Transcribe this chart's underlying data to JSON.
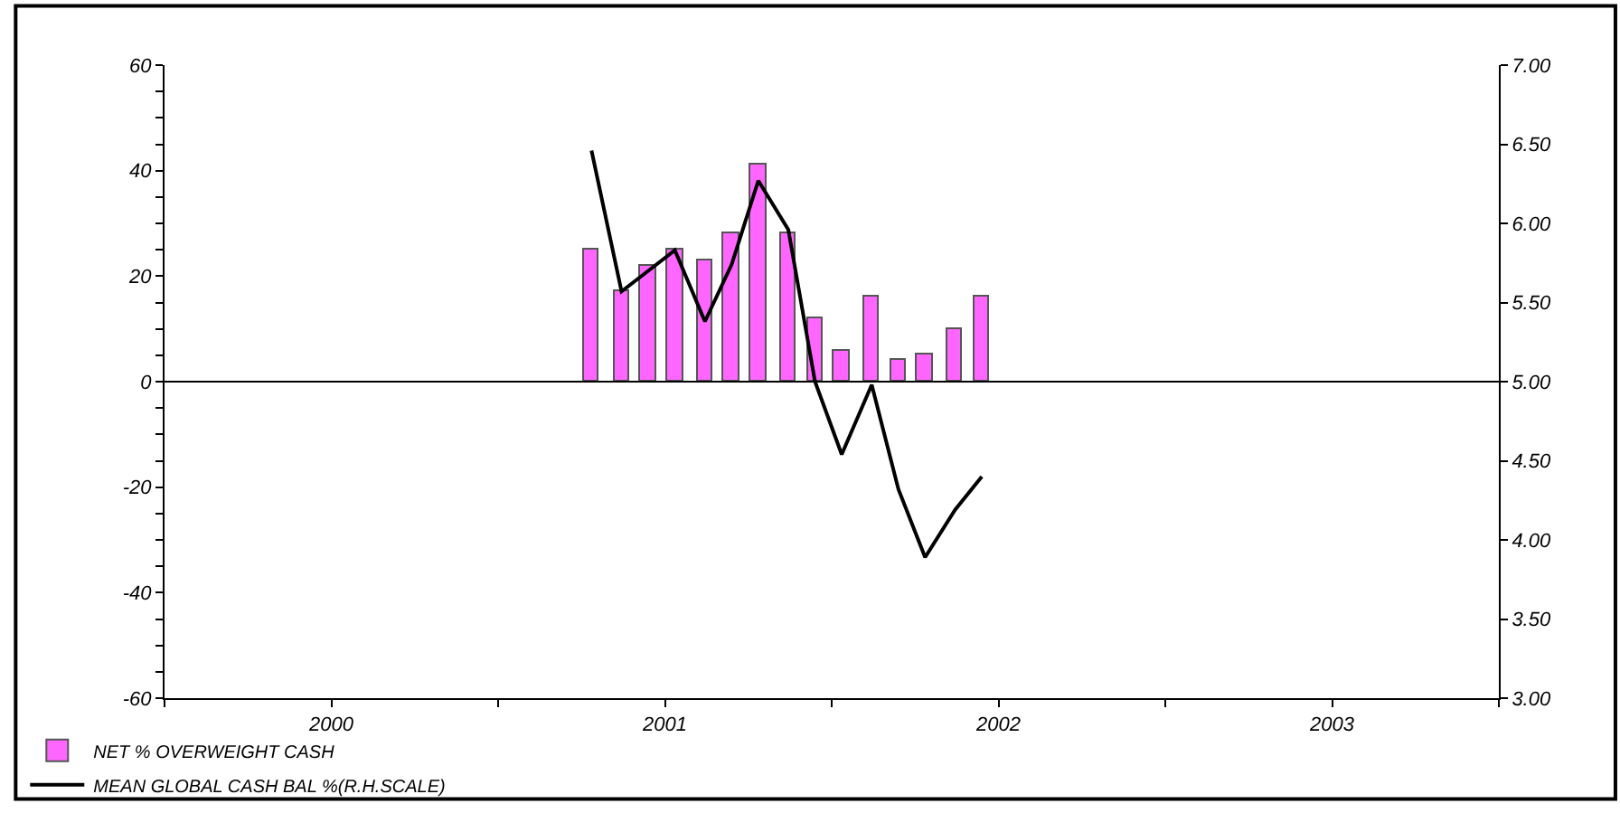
{
  "chart_data": {
    "type": "bar",
    "x": [
      2001.28,
      2001.37,
      2001.45,
      2001.53,
      2001.62,
      2001.7,
      2001.78,
      2001.87,
      2001.95,
      2002.03,
      2002.12,
      2002.2,
      2002.28,
      2002.37,
      2002.45
    ],
    "series": [
      {
        "name": "NET % OVERWEIGHT CASH",
        "color": "#ff66ff",
        "values": [
          25,
          17,
          22,
          25,
          23,
          28,
          41,
          28,
          12,
          6,
          16,
          4,
          5,
          10,
          16
        ]
      },
      {
        "name": "MEAN GLOBAL CASH BAL %(R.H.SCALE)",
        "type": "line",
        "axis": "y2",
        "color": "#000000",
        "values": [
          6.46,
          5.57,
          5.7,
          5.83,
          5.38,
          5.74,
          6.27,
          5.96,
          5.0,
          4.54,
          4.98,
          4.32,
          3.89,
          4.19,
          4.4
        ]
      }
    ],
    "xlim": [
      2000,
      2004
    ],
    "xticks": [
      {
        "value": 2000,
        "label": null
      },
      {
        "value": 2000.5,
        "label": "2000"
      },
      {
        "value": 2001,
        "label": null
      },
      {
        "value": 2001.5,
        "label": "2001"
      },
      {
        "value": 2002,
        "label": null
      },
      {
        "value": 2002.5,
        "label": "2002"
      },
      {
        "value": 2003,
        "label": null
      },
      {
        "value": 2003.5,
        "label": "2003"
      },
      {
        "value": 2004,
        "label": null
      }
    ],
    "ylim": [
      -60,
      60
    ],
    "yticks": [
      -60,
      {
        "value": -55,
        "label": null
      },
      {
        "value": -50,
        "label": null
      },
      {
        "value": -45,
        "label": null
      },
      -40,
      {
        "value": -35,
        "label": null
      },
      {
        "value": -30,
        "label": null
      },
      {
        "value": -25,
        "label": null
      },
      -20,
      {
        "value": -15,
        "label": null
      },
      {
        "value": -10,
        "label": null
      },
      {
        "value": -5,
        "label": null
      },
      0,
      {
        "value": 5,
        "label": null
      },
      {
        "value": 10,
        "label": null
      },
      {
        "value": 15,
        "label": null
      },
      20,
      {
        "value": 25,
        "label": null
      },
      {
        "value": 30,
        "label": null
      },
      {
        "value": 35,
        "label": null
      },
      40,
      {
        "value": 45,
        "label": null
      },
      {
        "value": 50,
        "label": null
      },
      {
        "value": 55,
        "label": null
      },
      60
    ],
    "y2lim": [
      3,
      7
    ],
    "y2ticks": [
      {
        "value": 3,
        "label": "3.00"
      },
      {
        "value": 3.5,
        "label": "3.50"
      },
      {
        "value": 4,
        "label": "4.00"
      },
      {
        "value": 4.5,
        "label": "4.50"
      },
      {
        "value": 5,
        "label": "5.00"
      },
      {
        "value": 5.5,
        "label": "5.50"
      },
      {
        "value": 6,
        "label": "6.00"
      },
      {
        "value": 6.5,
        "label": "6.50"
      },
      {
        "value": 7,
        "label": "7.00"
      }
    ],
    "ref_lines": [
      {
        "axis": "y",
        "value": 0,
        "color": "#000000"
      }
    ],
    "legend": "bottom left",
    "marker": "none",
    "line_style": "solid"
  }
}
